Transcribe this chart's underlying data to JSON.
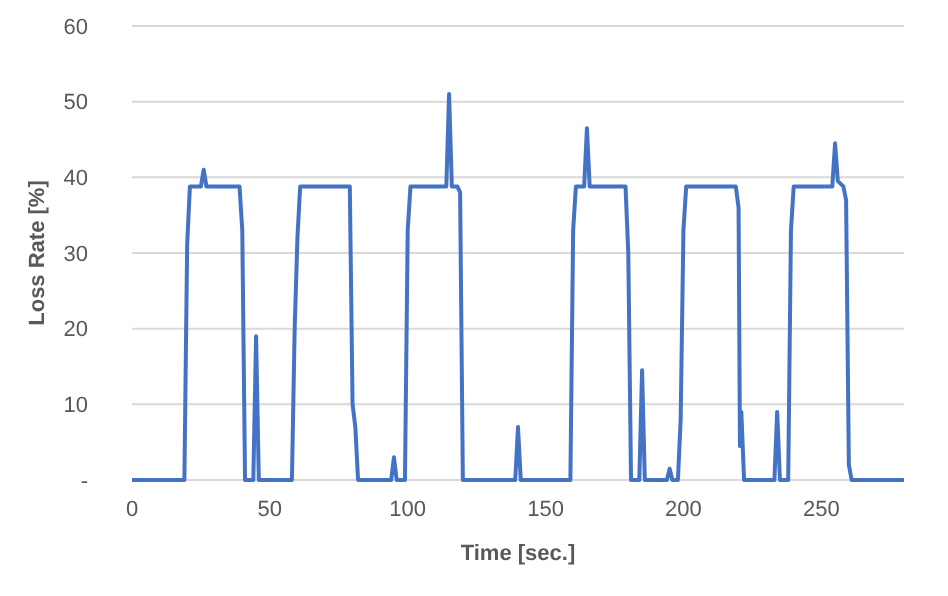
{
  "chart_data": {
    "type": "line",
    "xlabel": "Time [sec.]",
    "ylabel": "Loss Rate [%]",
    "xlim": [
      0,
      280
    ],
    "xticks": [
      0,
      50,
      100,
      150,
      200,
      250
    ],
    "ylim": [
      0,
      60
    ],
    "yticks": [
      {
        "value": 0,
        "label": "-"
      },
      10,
      20,
      30,
      40,
      50,
      60
    ],
    "grid": "y",
    "marker": "none",
    "line_style": "solid",
    "series": [
      {
        "color": "#4472c4",
        "x": [
          0,
          19,
          20,
          21,
          25,
          26,
          27,
          39,
          40,
          41,
          44,
          45,
          46,
          58,
          59,
          60,
          61,
          79,
          80,
          81,
          82,
          94,
          95,
          96,
          99,
          100,
          101,
          114,
          115,
          116,
          118,
          119,
          120,
          139,
          140,
          141,
          159,
          160,
          161,
          164,
          165,
          166,
          179,
          180,
          181,
          184,
          185,
          186,
          194,
          195,
          196,
          198,
          199,
          200,
          201,
          219,
          220,
          220.5,
          221,
          222,
          233,
          234,
          235,
          238,
          239,
          240,
          254,
          255,
          256,
          258,
          259,
          260,
          261,
          280
        ],
        "values": [
          0,
          0,
          31,
          38.8,
          38.8,
          41,
          38.8,
          38.8,
          33,
          0,
          0,
          19,
          0,
          0,
          20,
          32,
          38.8,
          38.8,
          10,
          7,
          0,
          0,
          3,
          0,
          0,
          33,
          38.8,
          38.8,
          51,
          38.8,
          38.8,
          38,
          0,
          0,
          7,
          0,
          0,
          33,
          38.8,
          38.8,
          46.5,
          38.8,
          38.8,
          30,
          0,
          0,
          14.5,
          0,
          0,
          1.5,
          0,
          0,
          8,
          33,
          38.8,
          38.8,
          36,
          4.5,
          9,
          0,
          0,
          9,
          0,
          0,
          33,
          38.8,
          38.8,
          44.5,
          39.5,
          38.8,
          37,
          2,
          0,
          0
        ]
      }
    ]
  }
}
